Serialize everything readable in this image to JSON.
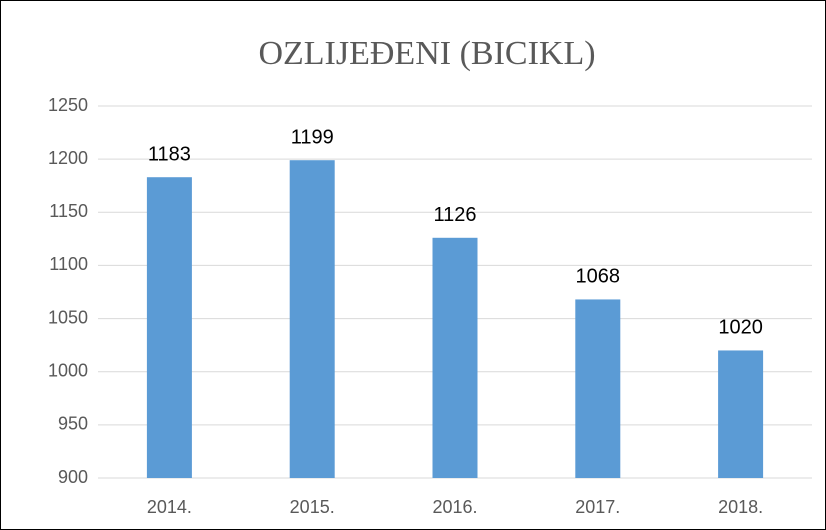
{
  "chart_data": {
    "type": "bar",
    "title": "OZLIJEĐENI (BICIKL)",
    "categories": [
      "2014.",
      "2015.",
      "2016.",
      "2017.",
      "2018."
    ],
    "values": [
      1183,
      1199,
      1126,
      1068,
      1020
    ],
    "color": "#5b9bd5",
    "ylim": [
      900,
      1250
    ],
    "yticks": [
      900,
      950,
      1000,
      1050,
      1100,
      1150,
      1200,
      1250
    ],
    "grid": true
  }
}
